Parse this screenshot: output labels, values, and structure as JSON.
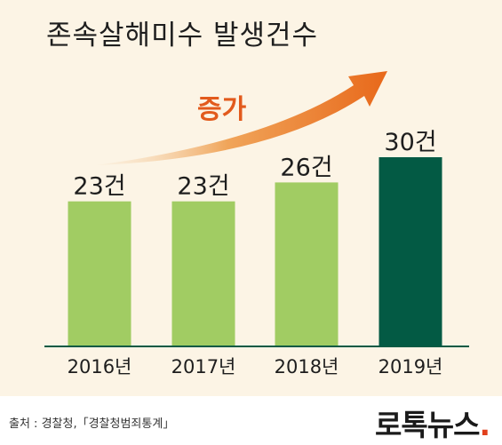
{
  "chart_data": {
    "type": "bar",
    "title": "존속살해미수 발생건수",
    "categories": [
      "2016년",
      "2017년",
      "2018년",
      "2019년"
    ],
    "values": [
      23,
      23,
      26,
      30
    ],
    "value_labels": [
      "23건",
      "23건",
      "26건",
      "30건"
    ],
    "ylim": [
      0,
      30
    ],
    "grid": false,
    "legend": "none",
    "annotation": "증가",
    "colors": {
      "bar": "#a1cc63",
      "bar_highlight": "#035a44",
      "arrow": "#e8701c",
      "annotation": "#e25a1c",
      "baseline": "#035a44"
    }
  },
  "footer": {
    "source": "출처 : 경찰청,「경찰청범죄통계」",
    "logo_text": "로톡뉴스",
    "logo_dot": "."
  }
}
